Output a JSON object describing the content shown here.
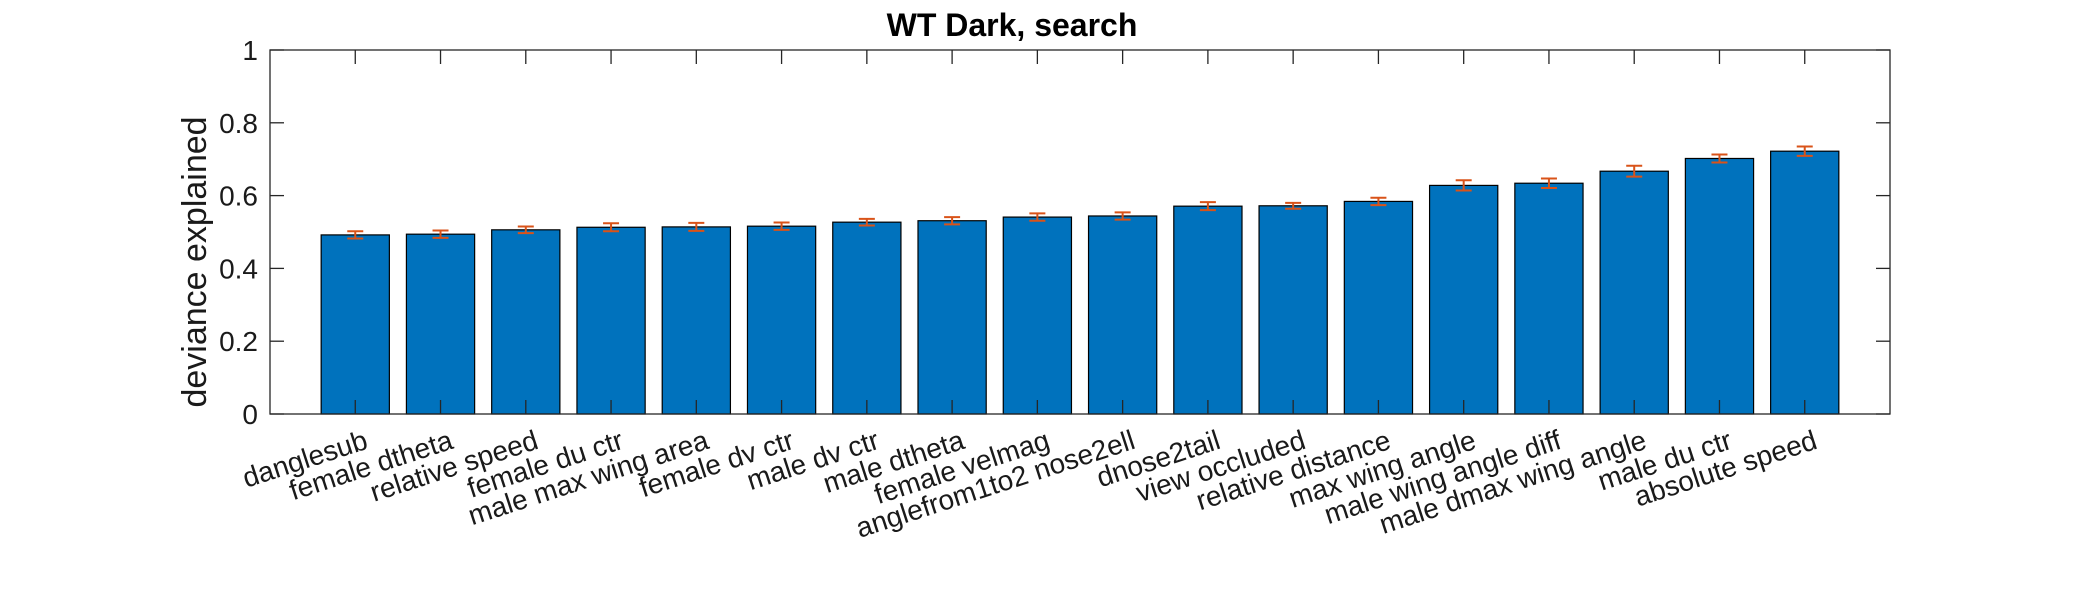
{
  "chart_data": {
    "type": "bar",
    "title": "WT Dark, search",
    "xlabel": "",
    "ylabel": "deviance explained",
    "ylim": [
      0,
      1
    ],
    "yticks": [
      0,
      0.2,
      0.4,
      0.6,
      0.8,
      1
    ],
    "ytick_labels": [
      "0",
      "0.2",
      "0.4",
      "0.6",
      "0.8",
      "1"
    ],
    "categories": [
      "danglesub",
      "female dtheta",
      "relative speed",
      "female du ctr",
      "male max wing area",
      "female dv ctr",
      "male dv ctr",
      "male dtheta",
      "female velmag",
      "anglefrom1to2 nose2ell",
      "dnose2tail",
      "view occluded",
      "relative distance",
      "max wing angle",
      "male wing angle diff",
      "male dmax wing angle",
      "male du ctr",
      "absolute speed"
    ],
    "values": [
      0.492,
      0.494,
      0.506,
      0.513,
      0.514,
      0.516,
      0.527,
      0.531,
      0.541,
      0.544,
      0.571,
      0.572,
      0.584,
      0.628,
      0.634,
      0.667,
      0.702,
      0.722
    ],
    "errors": [
      0.01,
      0.01,
      0.009,
      0.011,
      0.011,
      0.01,
      0.009,
      0.01,
      0.01,
      0.01,
      0.011,
      0.008,
      0.01,
      0.014,
      0.013,
      0.015,
      0.011,
      0.013
    ],
    "bar_color": "#0072BD",
    "error_color": "#D95319",
    "grid": false,
    "legend": "none"
  }
}
